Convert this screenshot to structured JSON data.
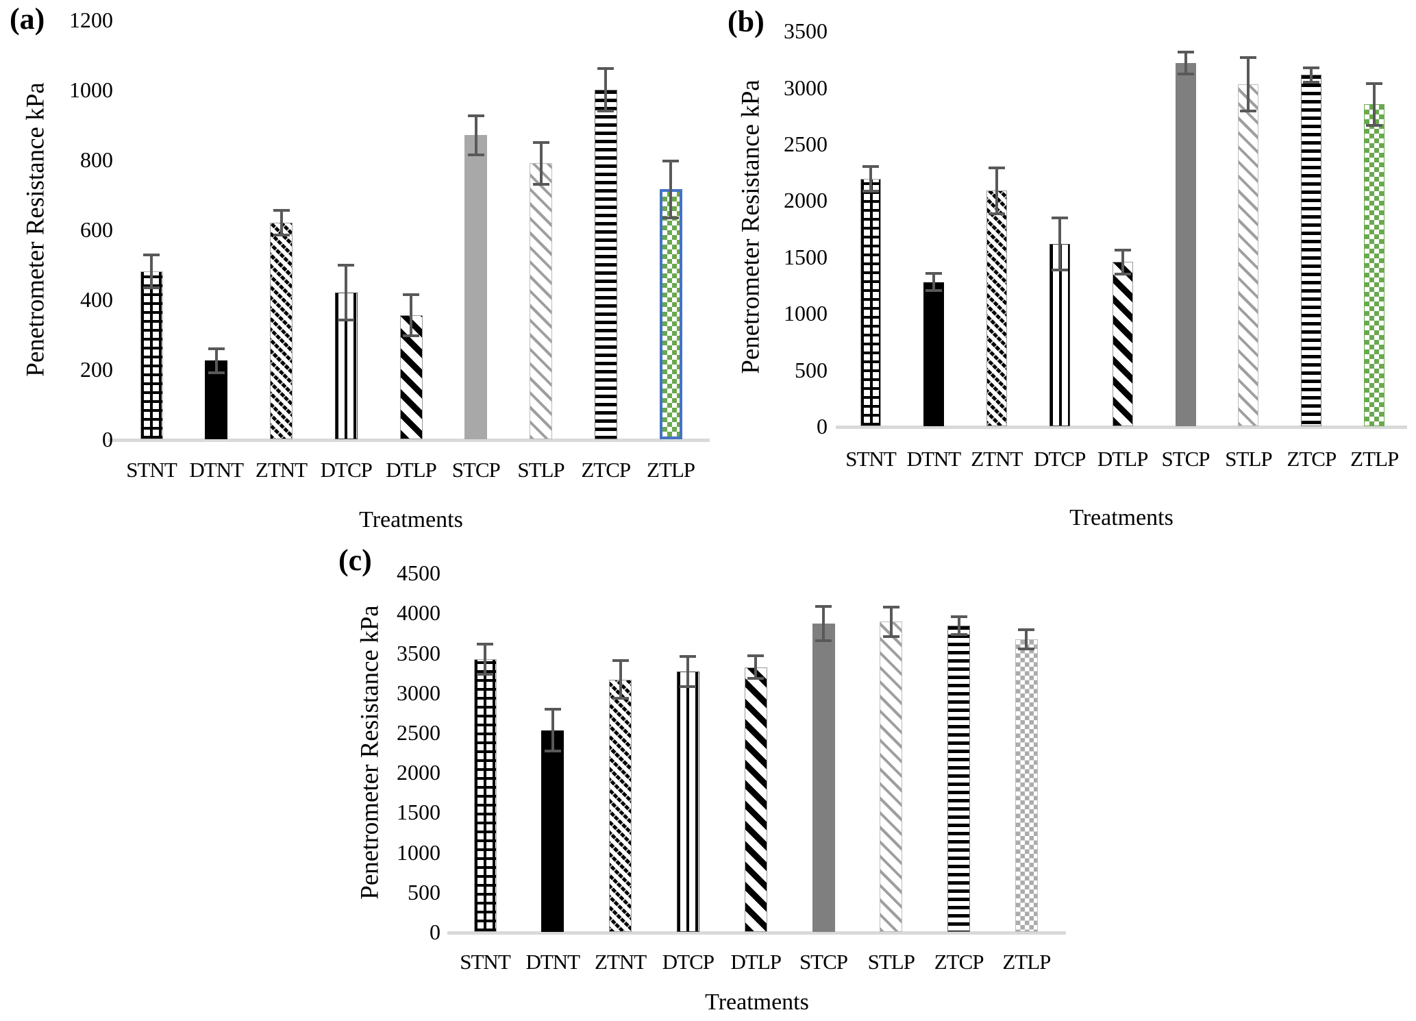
{
  "colors": {
    "error_bar": "#595959",
    "axis_line": "#d9d9d9",
    "solid_gray_panel_a": "#a8a8a8",
    "solid_gray_panel_bc": "#7f7f7f",
    "checker_green": "#6aa84f",
    "checker_green_border_blue": "#4472c4",
    "checker_gray": "#ababab",
    "bar_black": "#000000"
  },
  "chart_data": [
    {
      "type": "bar",
      "panel": "(a)",
      "ylabel": "Penetrometer Resistance kPa",
      "xlabel": "Treatments",
      "ylim": [
        0,
        1200
      ],
      "ytick_step": 200,
      "ytick_labels": [
        "0",
        "200",
        "400",
        "600",
        "800",
        "1000",
        "1200"
      ],
      "grid": false,
      "legend": "none",
      "categories": [
        "STNT",
        "DTNT",
        "ZTNT",
        "DTCP",
        "DTLP",
        "STCP",
        "STLP",
        "ZTCP",
        "ZTLP"
      ],
      "series": [
        {
          "name": "Penetrometer Resistance kPa",
          "values": [
            480,
            225,
            620,
            420,
            355,
            870,
            790,
            1000,
            715
          ],
          "errors": [
            45,
            32,
            33,
            76,
            56,
            54,
            58,
            58,
            80
          ]
        }
      ],
      "patterns": [
        "grid",
        "solid-black",
        "diagonal-dashed",
        "vertical-stripes",
        "diagonal-thick",
        "solid-gray",
        "diagonal-gray",
        "horizontal-stripes",
        "checker-green-blue"
      ]
    },
    {
      "type": "bar",
      "panel": "(b)",
      "ylabel": "Penetrometer Resistance kPa",
      "xlabel": "Treatments",
      "ylim": [
        0,
        3500
      ],
      "ytick_step": 500,
      "ytick_labels": [
        "0",
        "500",
        "1000",
        "1500",
        "2000",
        "2500",
        "3000",
        "3500"
      ],
      "grid": false,
      "legend": "none",
      "categories": [
        "STNT",
        "DTNT",
        "ZTNT",
        "DTCP",
        "DTLP",
        "STCP",
        "STLP",
        "ZTCP",
        "ZTLP"
      ],
      "series": [
        {
          "name": "Penetrometer Resistance kPa",
          "values": [
            2190,
            1275,
            2085,
            1615,
            1455,
            3215,
            3030,
            3110,
            2850
          ],
          "errors": [
            105,
            70,
            195,
            225,
            100,
            90,
            230,
            60,
            180
          ]
        }
      ],
      "patterns": [
        "grid",
        "solid-black",
        "diagonal-dashed",
        "vertical-stripes",
        "diagonal-thick",
        "solid-gray",
        "diagonal-gray",
        "horizontal-stripes",
        "checker-green"
      ]
    },
    {
      "type": "bar",
      "panel": "(c)",
      "ylabel": "Penetrometer Resistance kPa",
      "xlabel": "Treatments",
      "ylim": [
        0,
        4500
      ],
      "ytick_step": 500,
      "ytick_labels": [
        "0",
        "500",
        "1000",
        "1500",
        "2000",
        "2500",
        "3000",
        "3500",
        "4000",
        "4500"
      ],
      "grid": false,
      "legend": "none",
      "categories": [
        "STNT",
        "DTNT",
        "ZTNT",
        "DTCP",
        "DTLP",
        "STCP",
        "STLP",
        "ZTCP",
        "ZTLP"
      ],
      "series": [
        {
          "name": "Penetrometer Resistance kPa",
          "values": [
            3420,
            2530,
            3165,
            3265,
            3320,
            3865,
            3890,
            3840,
            3670
          ],
          "errors": [
            180,
            255,
            230,
            180,
            130,
            205,
            175,
            105,
            110
          ]
        }
      ],
      "patterns": [
        "grid",
        "solid-black",
        "diagonal-dashed",
        "vertical-stripes",
        "diagonal-thick",
        "solid-gray",
        "diagonal-gray",
        "horizontal-stripes",
        "checker-gray"
      ]
    }
  ]
}
